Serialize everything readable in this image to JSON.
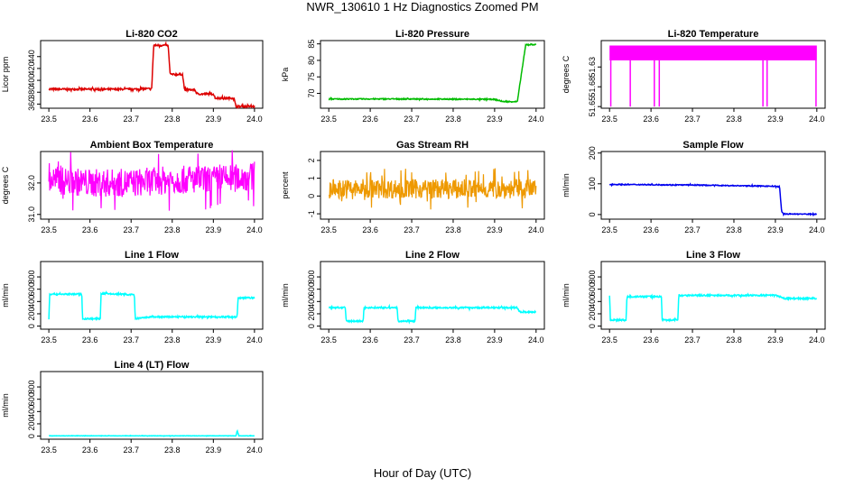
{
  "title": "NWR_130610  1 Hz Diagnostics Zoomed PM",
  "xlabel": "Hour of Day (UTC)",
  "chart_data": [
    {
      "type": "line",
      "title": "Li-820 CO2",
      "ylabel": "Licor ppm",
      "color": "#dd0000",
      "xlim": [
        23.48,
        24.02
      ],
      "ylim": [
        353,
        467
      ],
      "xticks": [
        "23.5",
        "23.6",
        "23.7",
        "23.8",
        "23.9",
        "24.0"
      ],
      "yticks": [
        "360",
        "380",
        "400",
        "420",
        "440"
      ],
      "x": [
        23.5,
        23.6,
        23.7,
        23.75,
        23.755,
        23.79,
        23.795,
        23.825,
        23.83,
        23.855,
        23.86,
        23.9,
        23.905,
        23.95,
        23.955,
        24.0
      ],
      "y": [
        385,
        385,
        385,
        386,
        459,
        459,
        410,
        410,
        384,
        384,
        377,
        377,
        370,
        370,
        356,
        356
      ]
    },
    {
      "type": "line",
      "title": "Li-820 Pressure",
      "ylabel": "kPa",
      "color": "#00bb00",
      "xlim": [
        23.48,
        24.02
      ],
      "ylim": [
        65.5,
        86
      ],
      "xticks": [
        "23.5",
        "23.6",
        "23.7",
        "23.8",
        "23.9",
        "24.0"
      ],
      "yticks": [
        "70",
        "75",
        "80",
        "85"
      ],
      "x": [
        23.5,
        23.7,
        23.9,
        23.92,
        23.955,
        23.96,
        23.975,
        23.985,
        24.0
      ],
      "y": [
        68.3,
        68.3,
        68.2,
        67.5,
        67.5,
        72,
        84.7,
        84.8,
        84.8
      ]
    },
    {
      "type": "line",
      "title": "Li-820 Temperature",
      "ylabel": "degrees C",
      "color": "#ff00ff",
      "xlim": [
        23.48,
        24.02
      ],
      "ylim": [
        51.648,
        51.689
      ],
      "xticks": [
        "23.5",
        "23.6",
        "23.7",
        "23.8",
        "23.9",
        "24.0"
      ],
      "yticks": [
        "51.65",
        "51.68",
        "51.63"
      ],
      "x": [
        23.5,
        24.0
      ],
      "y": [
        51.68,
        51.68
      ]
    },
    {
      "type": "line",
      "title": "Ambient Box Temperature",
      "ylabel": "degrees C",
      "color": "#ff00ff",
      "xlim": [
        23.48,
        24.02
      ],
      "ylim": [
        30.85,
        33.0
      ],
      "xticks": [
        "23.5",
        "23.6",
        "23.7",
        "23.8",
        "23.9",
        "24.0"
      ],
      "yticks": [
        "31.0",
        "32.0"
      ],
      "x": [
        23.5,
        23.6,
        23.7,
        23.8,
        23.9,
        24.0
      ],
      "y": [
        32.1,
        32.0,
        32.0,
        32.1,
        32.1,
        32.2
      ]
    },
    {
      "type": "line",
      "title": "Gas Stream RH",
      "ylabel": "percent",
      "color": "#ee9900",
      "xlim": [
        23.48,
        24.02
      ],
      "ylim": [
        -1.3,
        2.5
      ],
      "xticks": [
        "23.5",
        "23.6",
        "23.7",
        "23.8",
        "23.9",
        "24.0"
      ],
      "yticks": [
        "-1",
        "0",
        "1",
        "2"
      ],
      "x": [
        23.5,
        23.6,
        23.7,
        23.8,
        23.9,
        24.0
      ],
      "y": [
        0.4,
        0.4,
        0.4,
        0.4,
        0.4,
        0.4
      ]
    },
    {
      "type": "line",
      "title": "Sample Flow",
      "ylabel": "ml/min",
      "color": "#0000ee",
      "xlim": [
        23.48,
        24.02
      ],
      "ylim": [
        -15,
        205
      ],
      "xticks": [
        "23.5",
        "23.6",
        "23.7",
        "23.8",
        "23.9",
        "24.0"
      ],
      "yticks": [
        "0",
        "100",
        "200"
      ],
      "x": [
        23.5,
        23.6,
        23.7,
        23.8,
        23.9,
        23.91,
        23.915,
        23.92,
        24.0
      ],
      "y": [
        98,
        97,
        96,
        94,
        92,
        90,
        10,
        2,
        1
      ]
    },
    {
      "type": "line",
      "title": "Line 1 Flow",
      "ylabel": "ml/min",
      "color": "#00ffff",
      "xlim": [
        23.48,
        24.02
      ],
      "ylim": [
        -50,
        1050
      ],
      "xticks": [
        "23.5",
        "23.6",
        "23.7",
        "23.8",
        "23.9",
        "24.0"
      ],
      "yticks": [
        "0",
        "200",
        "400",
        "600",
        "800"
      ],
      "x": [
        23.5,
        23.502,
        23.58,
        23.582,
        23.625,
        23.627,
        23.708,
        23.71,
        23.75,
        23.958,
        23.96,
        24.0
      ],
      "y": [
        120,
        520,
        520,
        120,
        120,
        530,
        510,
        120,
        150,
        150,
        460,
        460
      ]
    },
    {
      "type": "line",
      "title": "Line 2 Flow",
      "ylabel": "ml/min",
      "color": "#00ffff",
      "xlim": [
        23.48,
        24.02
      ],
      "ylim": [
        -50,
        1050
      ],
      "xticks": [
        "23.5",
        "23.6",
        "23.7",
        "23.8",
        "23.9",
        "24.0"
      ],
      "yticks": [
        "0",
        "200",
        "400",
        "600",
        "800"
      ],
      "x": [
        23.5,
        23.54,
        23.542,
        23.583,
        23.585,
        23.665,
        23.667,
        23.708,
        23.71,
        23.955,
        23.96,
        24.0
      ],
      "y": [
        300,
        300,
        80,
        80,
        300,
        300,
        80,
        80,
        300,
        300,
        230,
        230
      ]
    },
    {
      "type": "line",
      "title": "Line 3 Flow",
      "ylabel": "ml/min",
      "color": "#00ffff",
      "xlim": [
        23.48,
        24.02
      ],
      "ylim": [
        -50,
        1050
      ],
      "xticks": [
        "23.5",
        "23.6",
        "23.7",
        "23.8",
        "23.9",
        "24.0"
      ],
      "yticks": [
        "0",
        "200",
        "400",
        "600",
        "800"
      ],
      "x": [
        23.5,
        23.502,
        23.54,
        23.542,
        23.625,
        23.627,
        23.665,
        23.667,
        23.9,
        23.92,
        24.0
      ],
      "y": [
        500,
        100,
        100,
        480,
        480,
        100,
        100,
        500,
        500,
        450,
        450
      ]
    },
    {
      "type": "line",
      "title": "Line 4 (LT) Flow",
      "ylabel": "ml/min",
      "color": "#00ffff",
      "xlim": [
        23.48,
        24.02
      ],
      "ylim": [
        -50,
        1050
      ],
      "xticks": [
        "23.5",
        "23.6",
        "23.7",
        "23.8",
        "23.9",
        "24.0"
      ],
      "yticks": [
        "0",
        "200",
        "400",
        "600",
        "800"
      ],
      "x": [
        23.5,
        23.955,
        23.958,
        23.962,
        24.0
      ],
      "y": [
        5,
        5,
        90,
        5,
        5
      ]
    }
  ]
}
